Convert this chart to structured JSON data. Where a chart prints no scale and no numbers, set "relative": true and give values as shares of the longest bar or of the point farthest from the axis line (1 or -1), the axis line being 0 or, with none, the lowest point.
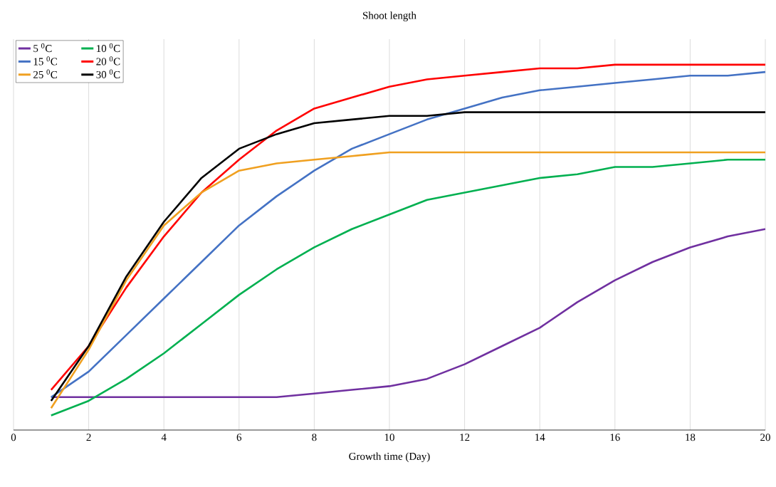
{
  "chart_data": {
    "type": "line",
    "title": "Shoot length",
    "xlabel": "Growth time (Day)",
    "relative": true,
    "xlim": [
      0,
      20
    ],
    "xticks": [
      0,
      2,
      4,
      6,
      8,
      10,
      12,
      14,
      16,
      18,
      20
    ],
    "grid": true,
    "legend": "top left",
    "marker": "none",
    "line_style": "solid",
    "x": [
      1,
      2,
      3,
      4,
      5,
      6,
      7,
      8,
      9,
      10,
      11,
      12,
      13,
      14,
      15,
      16,
      17,
      18,
      19,
      20
    ],
    "series": [
      {
        "name": "5 $^{0}$C",
        "color": "#7030a0",
        "values": [
          0.09,
          0.09,
          0.09,
          0.09,
          0.09,
          0.09,
          0.09,
          0.1,
          0.11,
          0.12,
          0.14,
          0.18,
          0.23,
          0.28,
          0.35,
          0.41,
          0.46,
          0.5,
          0.53,
          0.55
        ]
      },
      {
        "name": "10 $^{0}$C",
        "color": "#00b050",
        "values": [
          0.04,
          0.08,
          0.14,
          0.21,
          0.29,
          0.37,
          0.44,
          0.5,
          0.55,
          0.59,
          0.63,
          0.65,
          0.67,
          0.69,
          0.7,
          0.72,
          0.72,
          0.73,
          0.74,
          0.74
        ]
      },
      {
        "name": "15 $^{0}$C",
        "color": "#4472c4",
        "values": [
          0.09,
          0.16,
          0.26,
          0.36,
          0.46,
          0.56,
          0.64,
          0.71,
          0.77,
          0.81,
          0.85,
          0.88,
          0.91,
          0.93,
          0.94,
          0.95,
          0.96,
          0.97,
          0.97,
          0.98
        ]
      },
      {
        "name": "20 $^{0}$C",
        "color": "#ff0000",
        "values": [
          0.11,
          0.23,
          0.39,
          0.53,
          0.65,
          0.74,
          0.82,
          0.88,
          0.91,
          0.94,
          0.96,
          0.97,
          0.98,
          0.99,
          0.99,
          1,
          1,
          1,
          1,
          1
        ]
      },
      {
        "name": "25 $^{0}$C",
        "color": "#f0a020",
        "values": [
          0.06,
          0.22,
          0.41,
          0.56,
          0.65,
          0.71,
          0.73,
          0.74,
          0.75,
          0.76,
          0.76,
          0.76,
          0.76,
          0.76,
          0.76,
          0.76,
          0.76,
          0.76,
          0.76,
          0.76
        ]
      },
      {
        "name": "30 $^{0}$C",
        "color": "#000000",
        "values": [
          0.08,
          0.23,
          0.42,
          0.57,
          0.69,
          0.77,
          0.81,
          0.84,
          0.85,
          0.86,
          0.86,
          0.87,
          0.87,
          0.87,
          0.87,
          0.87,
          0.87,
          0.87,
          0.87,
          0.87
        ]
      }
    ]
  }
}
